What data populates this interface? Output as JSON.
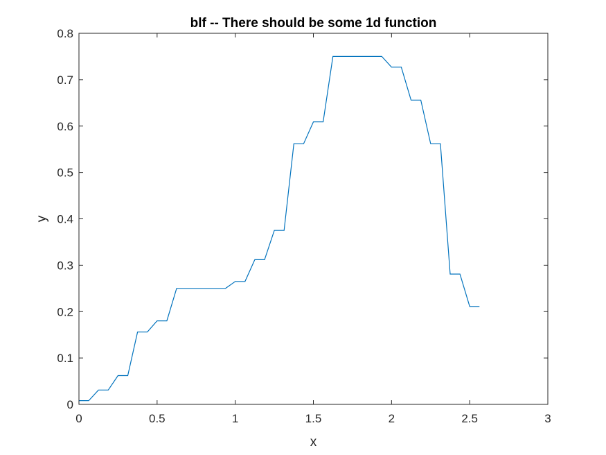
{
  "chart_data": {
    "type": "line",
    "title": "blf -- There should be some 1d function",
    "xlabel": "x",
    "ylabel": "y",
    "xlim": [
      0,
      3
    ],
    "ylim": [
      0,
      0.8
    ],
    "xticks": [
      0,
      0.5,
      1,
      1.5,
      2,
      2.5,
      3
    ],
    "yticks": [
      0,
      0.1,
      0.2,
      0.3,
      0.4,
      0.5,
      0.6,
      0.7,
      0.8
    ],
    "xtick_labels": [
      "0",
      "0.5",
      "1",
      "1.5",
      "2",
      "2.5",
      "3"
    ],
    "ytick_labels": [
      "0",
      "0.1",
      "0.2",
      "0.3",
      "0.4",
      "0.5",
      "0.6",
      "0.7",
      "0.8"
    ],
    "grid": false,
    "line_color": "#0072bd",
    "series": [
      {
        "x": [
          0,
          0.0625,
          0.125,
          0.1875,
          0.25,
          0.3125,
          0.375,
          0.4375,
          0.5,
          0.5625,
          0.625,
          0.6875,
          0.75,
          0.8125,
          0.875,
          0.9375,
          1.0,
          1.0625,
          1.125,
          1.1875,
          1.25,
          1.3125,
          1.375,
          1.4375,
          1.5,
          1.5625,
          1.625,
          1.6875,
          1.75,
          1.8125,
          1.875,
          1.9375,
          2.0,
          2.0625,
          2.125,
          2.1875,
          2.25,
          2.3125,
          2.375,
          2.4375,
          2.5,
          2.5625
        ],
        "y": [
          0.008,
          0.008,
          0.031,
          0.031,
          0.062,
          0.062,
          0.156,
          0.156,
          0.18,
          0.18,
          0.25,
          0.25,
          0.25,
          0.25,
          0.25,
          0.25,
          0.265,
          0.265,
          0.312,
          0.312,
          0.375,
          0.375,
          0.562,
          0.562,
          0.609,
          0.609,
          0.75,
          0.75,
          0.75,
          0.75,
          0.75,
          0.75,
          0.727,
          0.727,
          0.656,
          0.656,
          0.562,
          0.562,
          0.281,
          0.281,
          0.211,
          0.211
        ]
      }
    ]
  }
}
